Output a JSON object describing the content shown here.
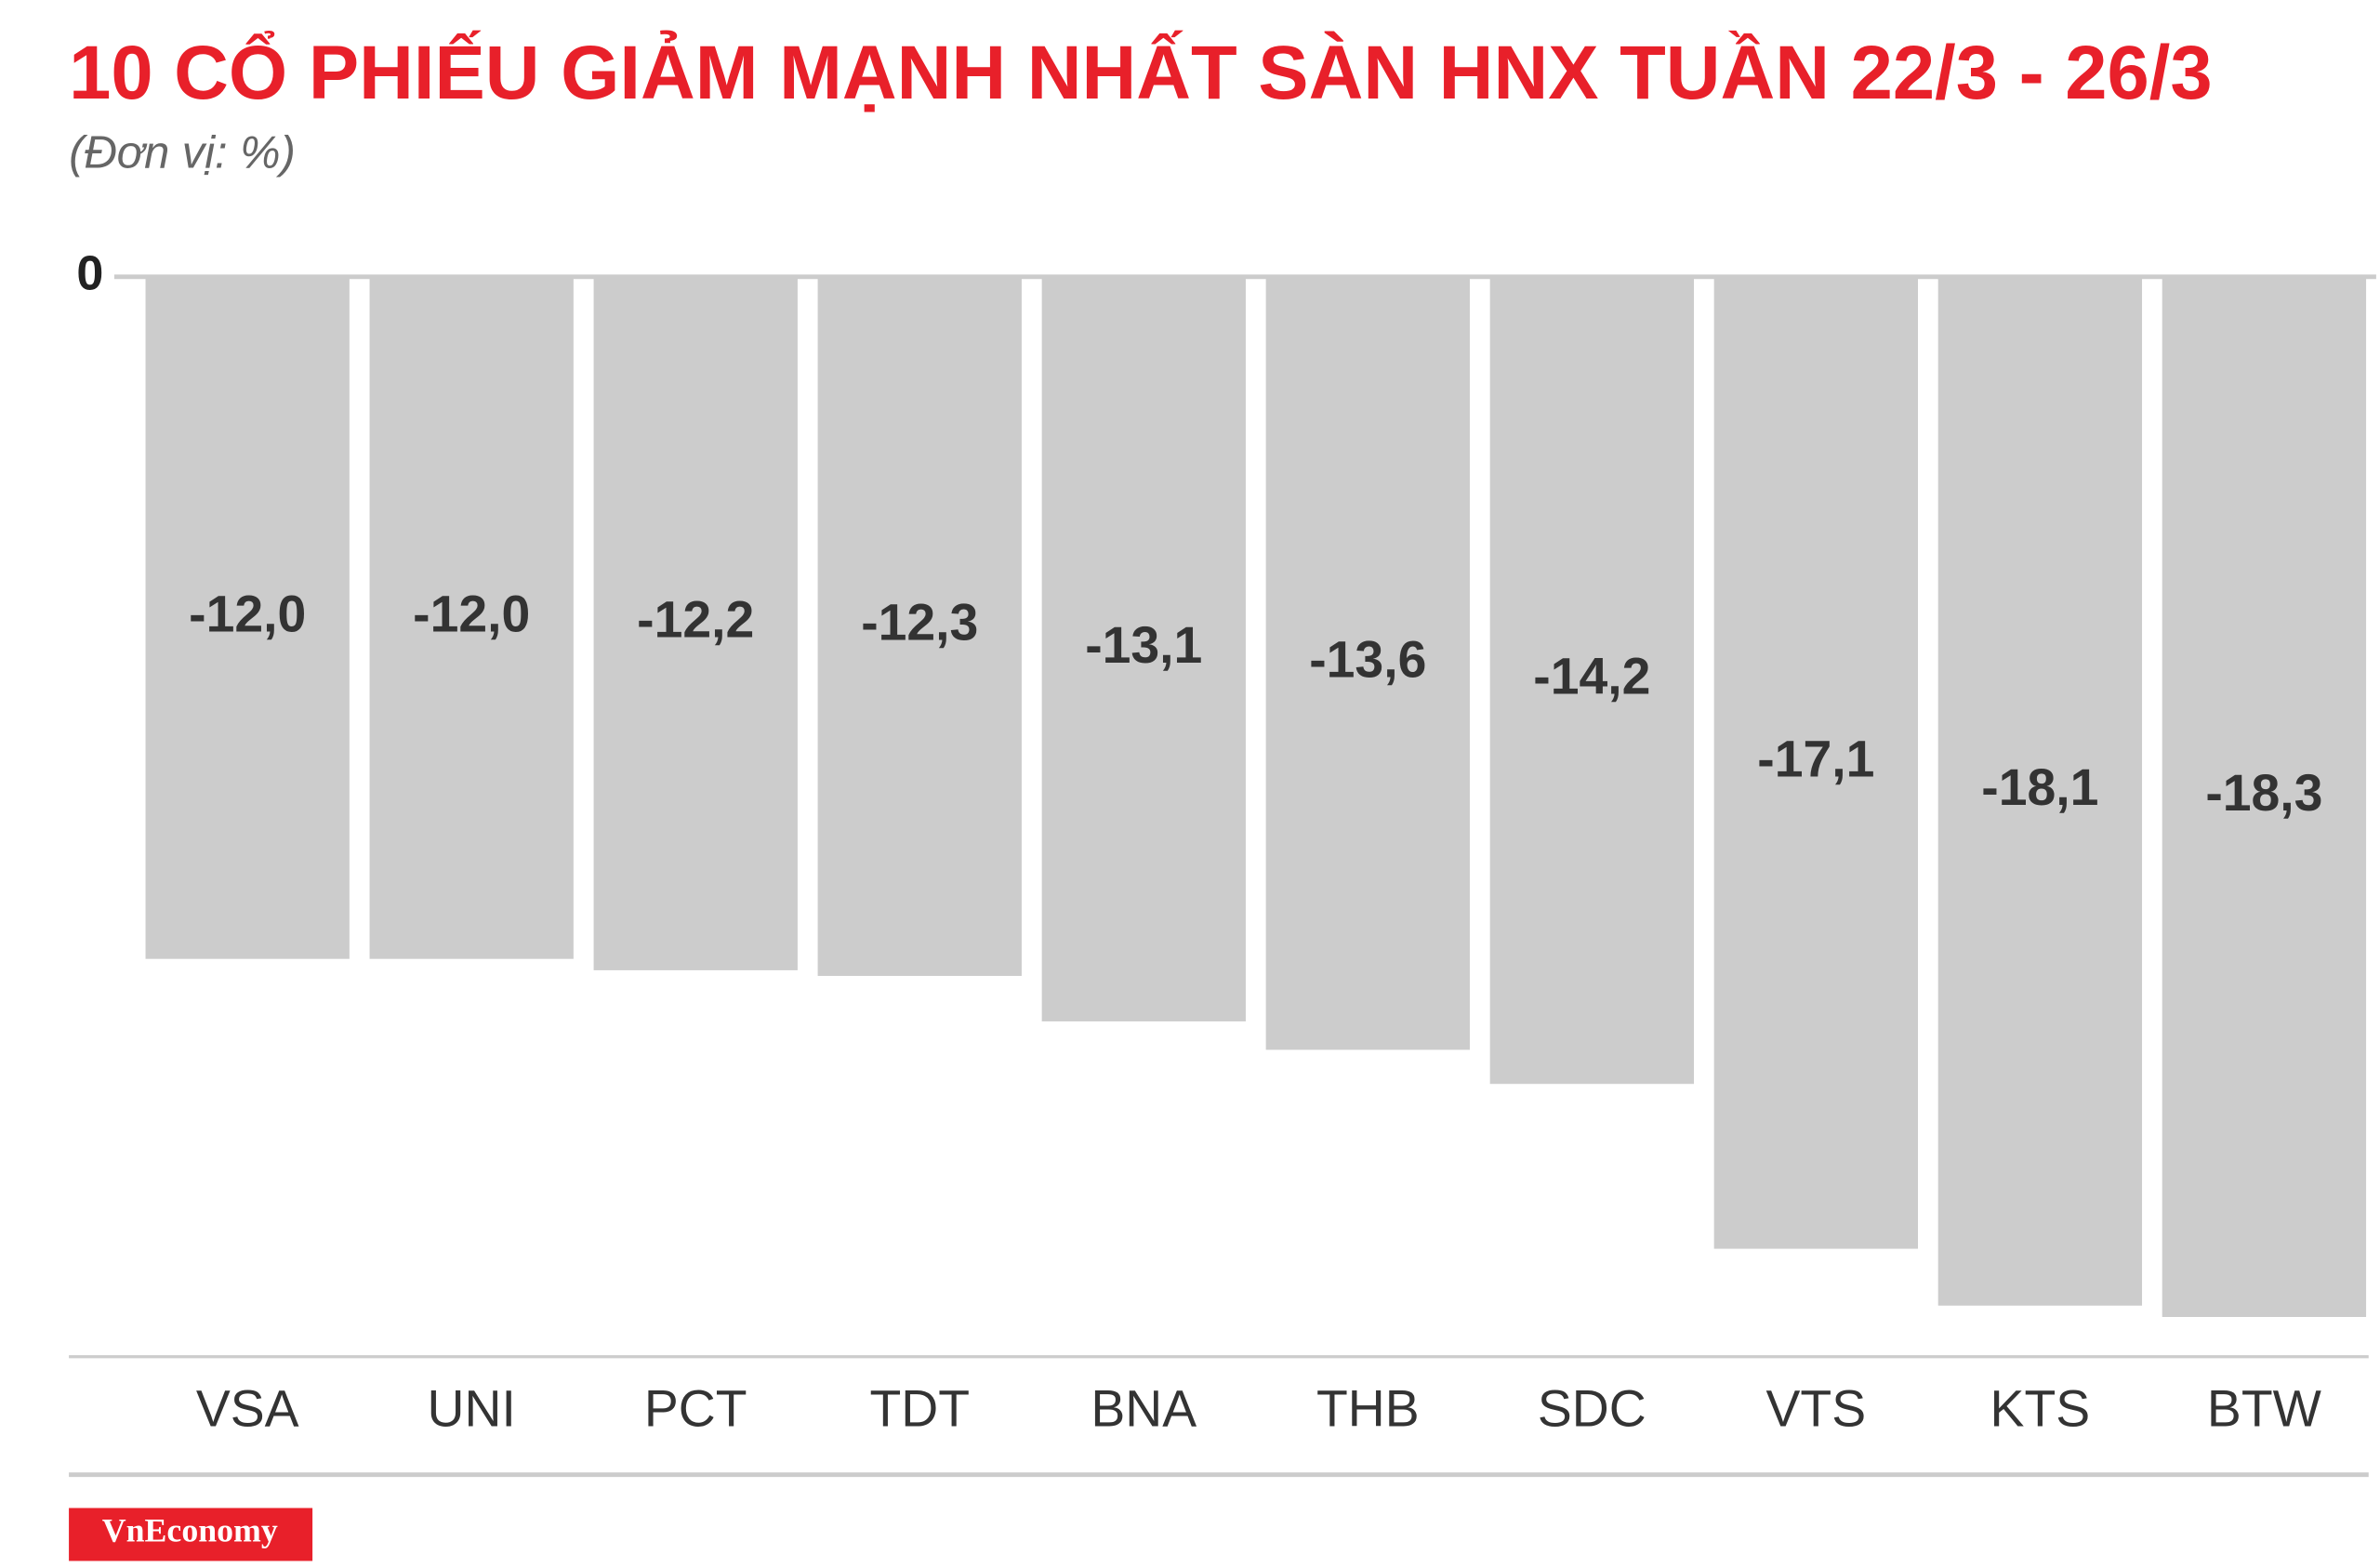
{
  "chart_data": {
    "type": "bar",
    "title": "10 CỔ PHIẾU GIẢM MẠNH NHẤT SÀN HNX TUẦN 22/3 - 26/3",
    "subtitle": "(Đơn vị: %)",
    "categories": [
      "VSA",
      "UNI",
      "PCT",
      "TDT",
      "BNA",
      "THB",
      "SDC",
      "VTS",
      "KTS",
      "BTW"
    ],
    "values": [
      -12.0,
      -12.0,
      -12.2,
      -12.3,
      -13.1,
      -13.6,
      -14.2,
      -17.1,
      -18.1,
      -18.3
    ],
    "value_labels": [
      "-12,0",
      "-12,0",
      "-12,2",
      "-12,3",
      "-13,1",
      "-13,6",
      "-14,2",
      "-17,1",
      "-18,1",
      "-18,3"
    ],
    "color": "#cccccc",
    "ylim": [
      -19,
      0
    ],
    "yticks": [
      0
    ],
    "brand": "VnEconomy"
  }
}
